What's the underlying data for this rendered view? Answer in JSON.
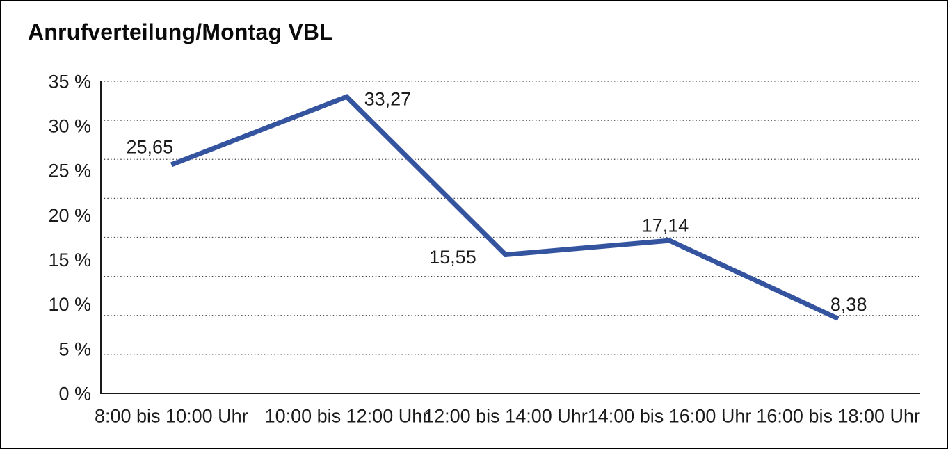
{
  "title": "Anrufverteilung/Montag VBL",
  "colors": {
    "line": "#35549F",
    "grid": "#404040",
    "axis": "#1a1a1a",
    "text": "#1a1a1a",
    "frame": "#000000",
    "background": "#ffffff"
  },
  "chart_data": {
    "type": "line",
    "title": "Anrufverteilung/Montag VBL",
    "categories": [
      "8:00 bis 10:00 Uhr",
      "10:00 bis 12:00 Uhr",
      "12:00 bis 14:00 Uhr",
      "14:00 bis 16:00 Uhr",
      "16:00 bis 18:00 Uhr"
    ],
    "values": [
      25.65,
      33.27,
      15.55,
      17.14,
      8.38
    ],
    "value_labels": [
      "25,65",
      "33,27",
      "15,55",
      "17,14",
      "8,38"
    ],
    "xlabel": "",
    "ylabel": "",
    "ylim": [
      0,
      35
    ],
    "y_ticks": [
      0,
      5,
      10,
      15,
      20,
      25,
      30,
      35
    ],
    "y_tick_labels": [
      "0 %",
      "5 %",
      "10 %",
      "15 %",
      "20 %",
      "25 %",
      "30 %",
      "35 %"
    ],
    "grid": "on",
    "gridline_count": 8,
    "grid_style": "dotted",
    "legend": "none",
    "decimal_separator": ","
  }
}
